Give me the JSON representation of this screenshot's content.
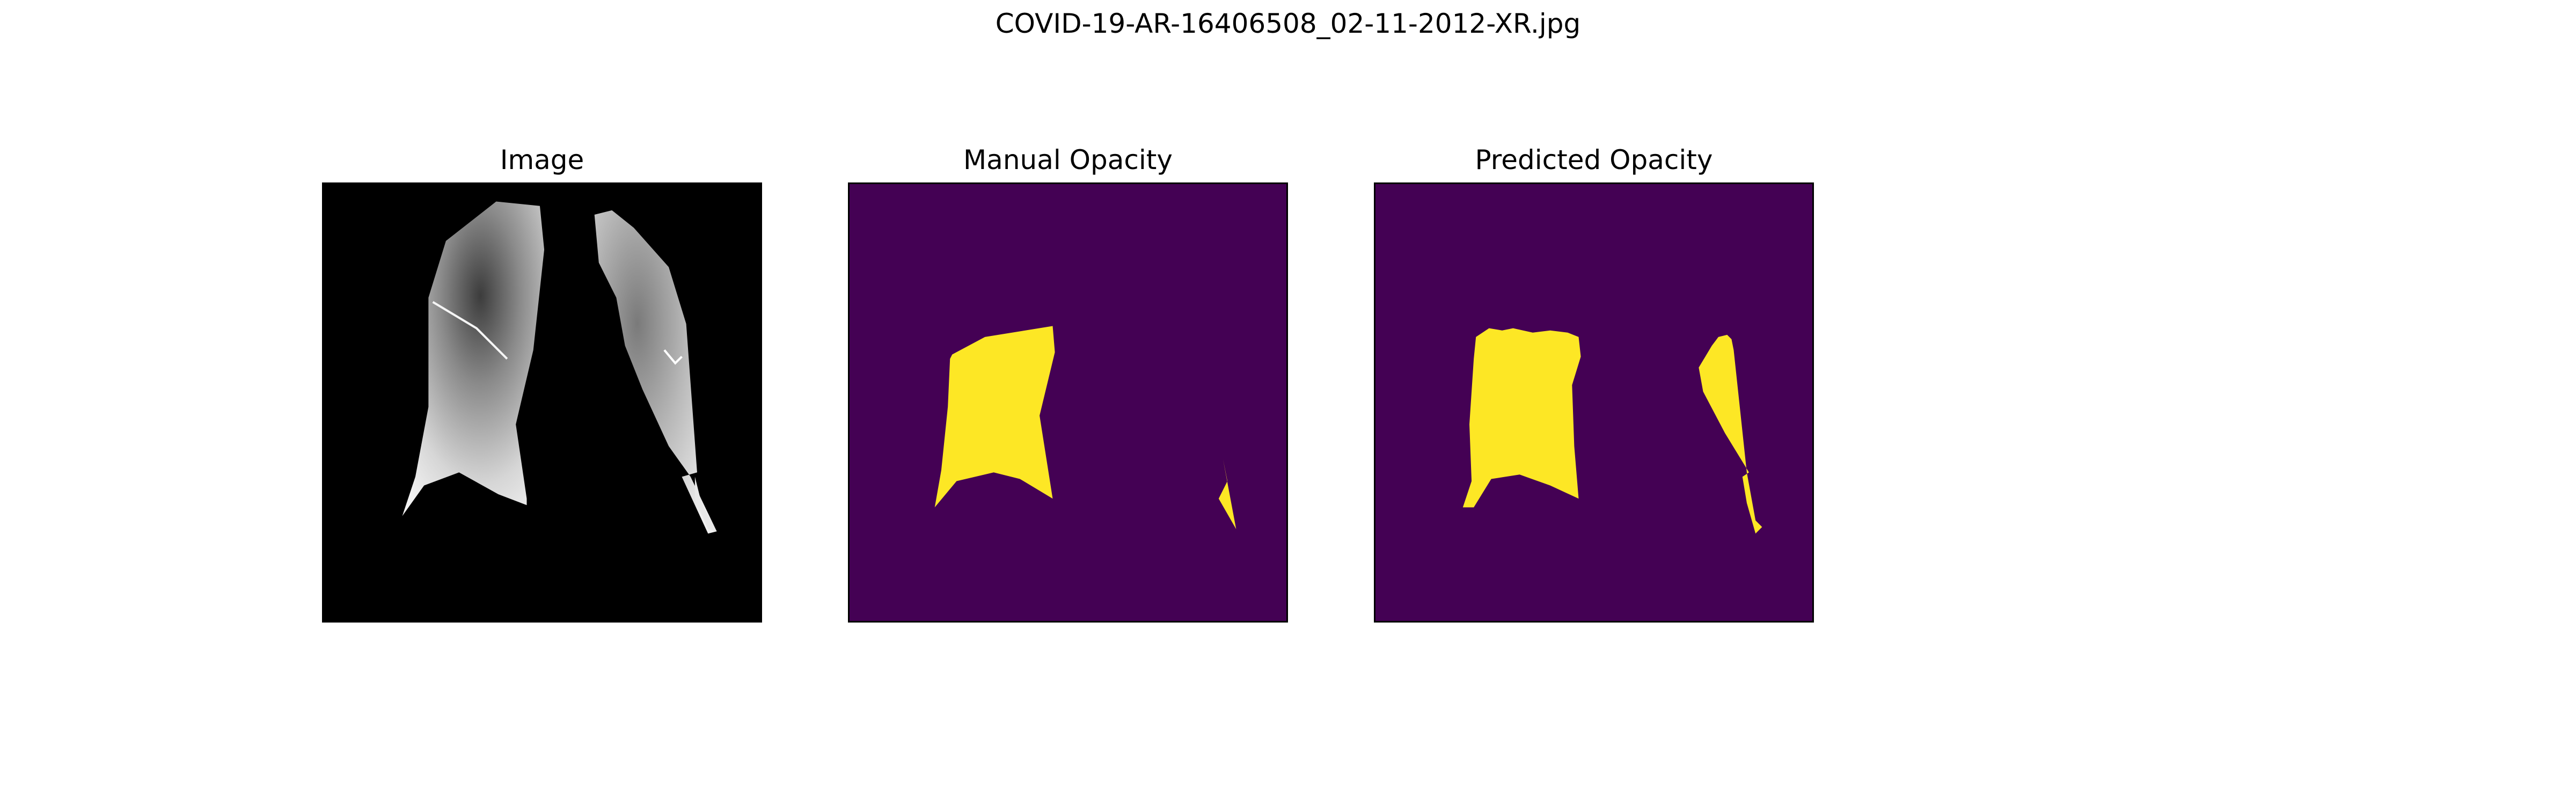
{
  "figure": {
    "suptitle": "COVID-19-AR-16406508_02-11-2012-XR.jpg"
  },
  "panels": [
    {
      "title": "Image",
      "kind": "x-ray"
    },
    {
      "title": "Manual Opacity",
      "kind": "mask"
    },
    {
      "title": "Predicted Opacity",
      "kind": "mask"
    }
  ],
  "colors": {
    "mask_background": "#440154",
    "mask_foreground": "#fde725",
    "xray_background": "#000000"
  }
}
